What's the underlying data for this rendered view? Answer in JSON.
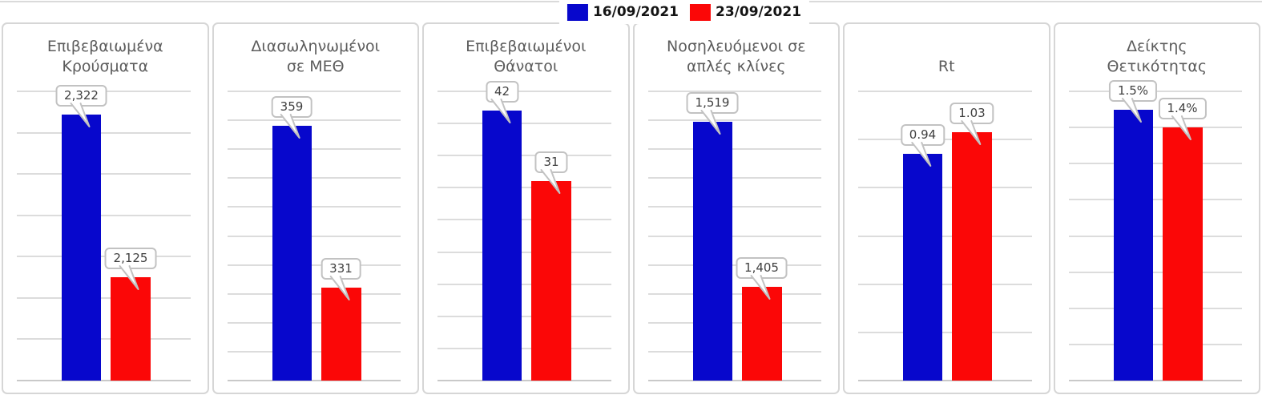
{
  "legend": {
    "position": "top-center",
    "items": [
      {
        "label": "16/09/2021",
        "color": "#0707cc"
      },
      {
        "label": "23/09/2021",
        "color": "#fb0707"
      }
    ]
  },
  "colors": {
    "series_blue": "#0707cc",
    "series_red": "#fb0707",
    "gridline": "#dcdcdc",
    "panel_border": "#d6d6d6",
    "title_text": "#5c5c5c",
    "label_text": "#3f3f3f"
  },
  "chart_data": [
    {
      "type": "bar",
      "title": "Επιβεβαιωμένα Κρούσματα",
      "title_lines": [
        "Επιβεβαιωμένα",
        "Κρούσματα"
      ],
      "categories": [
        "16/09/2021",
        "23/09/2021"
      ],
      "values": [
        2322,
        2125
      ],
      "labels": [
        "2,322",
        "2,125"
      ],
      "ylim": [
        2000,
        2350
      ],
      "ytick_step": 50,
      "grid": true,
      "legend_position": "shared-top"
    },
    {
      "type": "bar",
      "title": "Διασωληνωμένοι σε ΜΕΘ",
      "title_lines": [
        "Διασωληνωμένοι",
        "σε ΜΕΘ"
      ],
      "categories": [
        "16/09/2021",
        "23/09/2021"
      ],
      "values": [
        359,
        331
      ],
      "labels": [
        "359",
        "331"
      ],
      "ylim": [
        315,
        365
      ],
      "ytick_step": 5,
      "grid": true,
      "legend_position": "shared-top"
    },
    {
      "type": "bar",
      "title": "Επιβεβαιωμένοι Θάνατοι",
      "title_lines": [
        "Επιβεβαιωμένοι",
        "Θάνατοι"
      ],
      "categories": [
        "16/09/2021",
        "23/09/2021"
      ],
      "values": [
        42,
        31
      ],
      "labels": [
        "42",
        "31"
      ],
      "ylim": [
        0,
        45
      ],
      "ytick_step": 5,
      "grid": true,
      "legend_position": "shared-top"
    },
    {
      "type": "bar",
      "title": "Νοσηλευόμενοι σε απλές κλίνες",
      "title_lines": [
        "Νοσηλευόμενοι σε",
        "απλές κλίνες"
      ],
      "categories": [
        "16/09/2021",
        "23/09/2021"
      ],
      "values": [
        1519,
        1405
      ],
      "labels": [
        "1,519",
        "1,405"
      ],
      "ylim": [
        1340,
        1540
      ],
      "ytick_step": 20,
      "grid": true,
      "legend_position": "shared-top"
    },
    {
      "type": "bar",
      "title": "Rt",
      "title_lines": [
        "Rt"
      ],
      "categories": [
        "16/09/2021",
        "23/09/2021"
      ],
      "values": [
        0.94,
        1.03
      ],
      "labels": [
        "0.94",
        "1.03"
      ],
      "ylim": [
        0,
        1.2
      ],
      "ytick_step": 0.2,
      "grid": true,
      "legend_position": "shared-top"
    },
    {
      "type": "bar",
      "title": "Δείκτης Θετικότητας",
      "title_lines": [
        "Δείκτης",
        "Θετικότητας"
      ],
      "categories": [
        "16/09/2021",
        "23/09/2021"
      ],
      "values": [
        1.5,
        1.4
      ],
      "labels": [
        "1.5%",
        "1.4%"
      ],
      "ylim": [
        0,
        1.6
      ],
      "ytick_step": 0.2,
      "unit": "%",
      "grid": true,
      "legend_position": "shared-top"
    }
  ]
}
